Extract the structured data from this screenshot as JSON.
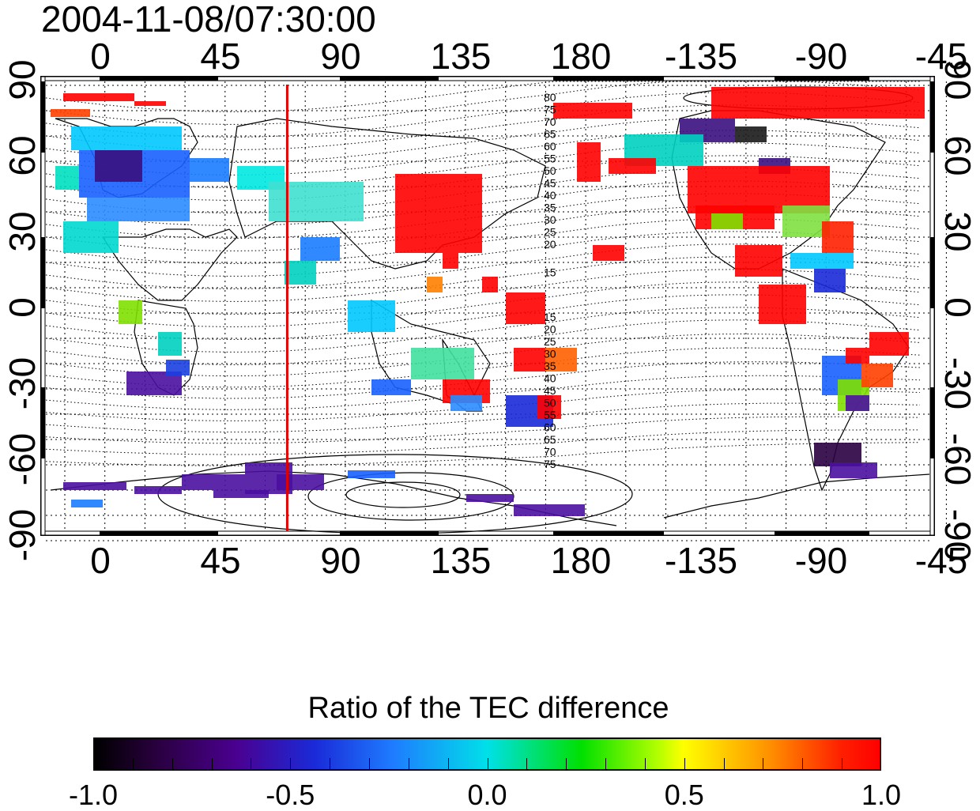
{
  "title": "2004-11-08/07:30:00",
  "map": {
    "lon_ticks_top": [
      "0",
      "45",
      "90",
      "135",
      "180",
      "-135",
      "-90",
      "-45"
    ],
    "lon_ticks_bottom": [
      "0",
      "45",
      "90",
      "135",
      "180",
      "-135",
      "-90",
      "-45"
    ],
    "lat_ticks_left": [
      "90",
      "60",
      "30",
      "0",
      "-30",
      "-60",
      "-90"
    ],
    "lat_ticks_right": [
      "90",
      "60",
      "30",
      "0",
      "-30",
      "-60",
      "-90"
    ],
    "dip_contour_labels_north": [
      "80",
      "75",
      "70",
      "65",
      "60",
      "55",
      "50",
      "45",
      "40",
      "35",
      "30",
      "25",
      "20",
      "15"
    ],
    "dip_contour_labels_south": [
      "15",
      "20",
      "25",
      "30",
      "35",
      "40",
      "45",
      "50",
      "55",
      "60",
      "65",
      "70",
      "75"
    ],
    "marker_line_color": "#e00000",
    "marker_longitude": 70
  },
  "colorbar": {
    "title": "Ratio of the TEC difference",
    "tick_labels": [
      "-1.0",
      "-0.5",
      "0.0",
      "0.5",
      "1.0"
    ],
    "range": [
      -1.0,
      1.0
    ],
    "colormap": "black-purple-blue-cyan-green-yellow-red"
  }
}
